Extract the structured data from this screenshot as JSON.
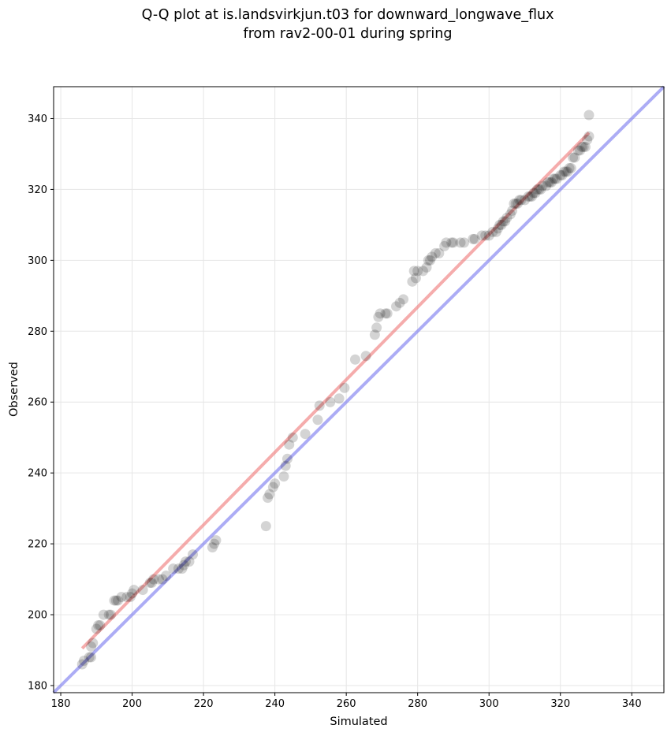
{
  "chart_data": {
    "type": "scatter",
    "title_lines": [
      "Q-Q plot at is.landsvirkjun.t03 for downward_longwave_flux",
      "from rav2-00-01 during spring"
    ],
    "xlabel": "Simulated",
    "ylabel": "Observed",
    "xlim": [
      178,
      349
    ],
    "ylim": [
      178,
      349
    ],
    "xticks": [
      180,
      200,
      220,
      240,
      260,
      280,
      300,
      320,
      340
    ],
    "yticks": [
      180,
      200,
      220,
      240,
      260,
      280,
      300,
      320,
      340
    ],
    "grid": true,
    "colors": {
      "points": "#000000",
      "fit_line": "#f08080",
      "identity_line": "#8080f0",
      "grid": "#e6e6e6"
    },
    "identity_line": {
      "x": [
        178,
        349
      ],
      "y": [
        178,
        349
      ]
    },
    "fit_line": {
      "x": [
        186,
        328
      ],
      "y": [
        190.5,
        336
      ]
    },
    "points": [
      [
        186,
        186
      ],
      [
        186.5,
        187
      ],
      [
        188,
        188
      ],
      [
        188.5,
        188
      ],
      [
        188.5,
        191
      ],
      [
        189,
        192
      ],
      [
        190,
        196
      ],
      [
        190.5,
        197
      ],
      [
        191,
        197
      ],
      [
        192,
        200
      ],
      [
        193.5,
        200
      ],
      [
        194,
        200
      ],
      [
        195,
        204
      ],
      [
        195.5,
        204
      ],
      [
        196,
        204
      ],
      [
        197,
        205
      ],
      [
        198.5,
        205
      ],
      [
        199.5,
        205
      ],
      [
        200,
        206
      ],
      [
        200.5,
        207
      ],
      [
        203,
        207
      ],
      [
        205,
        209
      ],
      [
        205.5,
        209
      ],
      [
        206,
        210
      ],
      [
        207.5,
        210
      ],
      [
        208.5,
        210
      ],
      [
        209.5,
        211
      ],
      [
        211.5,
        213
      ],
      [
        213,
        213
      ],
      [
        214,
        213
      ],
      [
        214.5,
        214
      ],
      [
        215,
        215
      ],
      [
        216,
        215
      ],
      [
        217,
        217
      ],
      [
        222.5,
        219
      ],
      [
        223,
        220
      ],
      [
        223.5,
        221
      ],
      [
        237.5,
        225
      ],
      [
        238,
        233
      ],
      [
        238.5,
        234
      ],
      [
        239.5,
        236
      ],
      [
        240,
        237
      ],
      [
        242.5,
        239
      ],
      [
        243,
        242
      ],
      [
        243.5,
        244
      ],
      [
        244,
        248
      ],
      [
        245,
        250
      ],
      [
        248.5,
        251
      ],
      [
        252,
        255
      ],
      [
        252.5,
        259
      ],
      [
        255.5,
        260
      ],
      [
        258,
        261
      ],
      [
        259.5,
        264
      ],
      [
        262.5,
        272
      ],
      [
        265.5,
        273
      ],
      [
        268,
        279
      ],
      [
        268.5,
        281
      ],
      [
        269,
        284
      ],
      [
        269.5,
        285
      ],
      [
        271,
        285
      ],
      [
        271.5,
        285
      ],
      [
        274,
        287
      ],
      [
        275,
        288
      ],
      [
        276,
        289
      ],
      [
        278.5,
        294
      ],
      [
        279,
        297
      ],
      [
        279.5,
        295
      ],
      [
        280,
        297
      ],
      [
        281.5,
        297
      ],
      [
        282.5,
        298
      ],
      [
        283,
        300
      ],
      [
        283.5,
        300
      ],
      [
        284,
        301
      ],
      [
        285,
        302
      ],
      [
        286,
        302
      ],
      [
        287.5,
        304
      ],
      [
        288,
        305
      ],
      [
        289.5,
        305
      ],
      [
        290,
        305
      ],
      [
        292,
        305
      ],
      [
        293,
        305
      ],
      [
        295.5,
        306
      ],
      [
        296,
        306
      ],
      [
        298,
        307
      ],
      [
        299,
        307
      ],
      [
        300,
        307
      ],
      [
        301,
        308
      ],
      [
        302,
        308
      ],
      [
        302.5,
        309
      ],
      [
        303,
        310
      ],
      [
        303.5,
        310
      ],
      [
        304,
        311
      ],
      [
        304.5,
        311
      ],
      [
        305,
        312
      ],
      [
        306,
        313
      ],
      [
        306.5,
        314
      ],
      [
        307,
        316
      ],
      [
        307.5,
        316
      ],
      [
        308,
        316
      ],
      [
        308.5,
        317
      ],
      [
        309,
        317
      ],
      [
        310,
        317
      ],
      [
        311,
        318
      ],
      [
        311.5,
        318
      ],
      [
        312,
        318
      ],
      [
        312.5,
        319
      ],
      [
        313,
        319
      ],
      [
        313.5,
        320
      ],
      [
        314,
        320
      ],
      [
        314.5,
        320
      ],
      [
        315,
        321
      ],
      [
        316,
        321
      ],
      [
        316.5,
        322
      ],
      [
        317,
        322
      ],
      [
        317.5,
        322
      ],
      [
        318,
        323
      ],
      [
        318.5,
        323
      ],
      [
        319,
        323
      ],
      [
        320,
        324
      ],
      [
        320.5,
        324
      ],
      [
        321,
        325
      ],
      [
        321.5,
        325
      ],
      [
        322,
        325
      ],
      [
        322.5,
        326
      ],
      [
        323,
        326
      ],
      [
        323.5,
        329
      ],
      [
        324,
        329
      ],
      [
        325,
        331
      ],
      [
        325.5,
        331
      ],
      [
        326,
        332
      ],
      [
        326.5,
        332
      ],
      [
        327,
        332
      ],
      [
        327.5,
        334
      ],
      [
        328,
        335
      ],
      [
        328,
        341
      ]
    ]
  }
}
